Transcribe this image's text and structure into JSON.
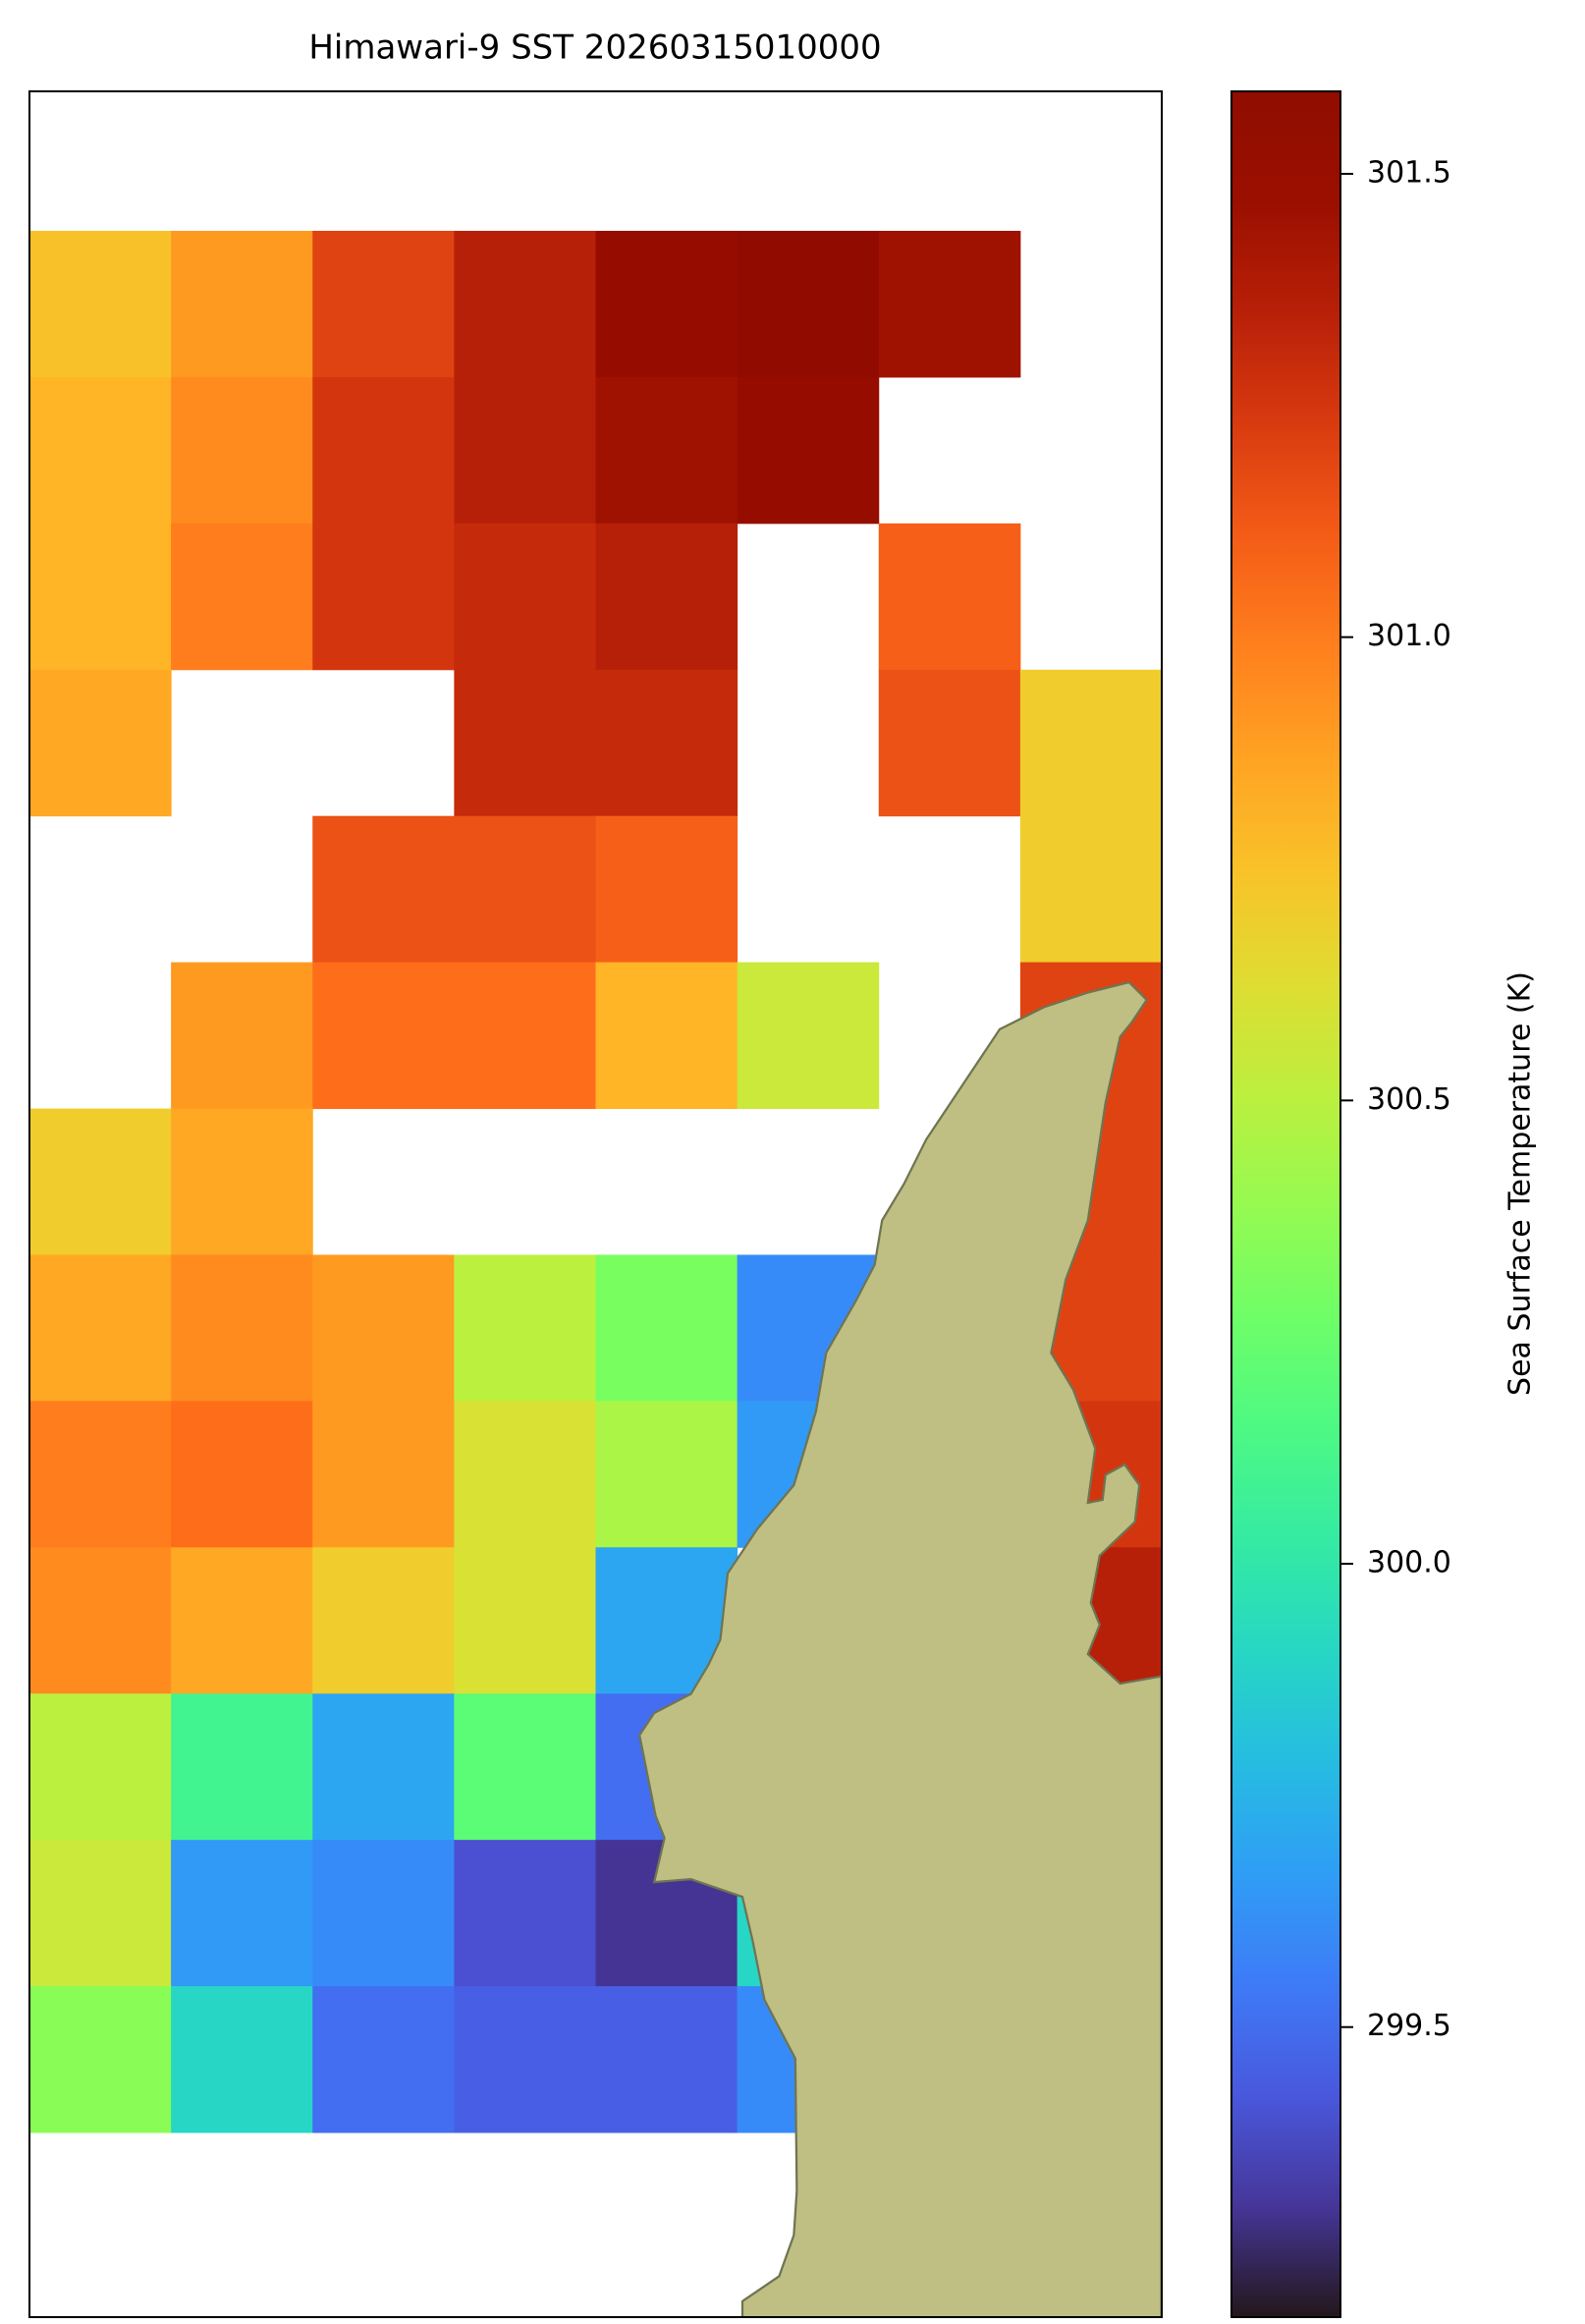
{
  "chart_data": {
    "type": "heatmap",
    "title": "Himawari-9 SST 20260315010000",
    "colorbar_label": "Sea Surface Temperature (K)",
    "colormap": "turbo",
    "clim": [
      299.187,
      301.589
    ],
    "cticks": [
      299.5,
      {
        "value": 300,
        "label": "300.0"
      },
      300.5,
      {
        "value": 301,
        "label": "301.0"
      },
      301.5
    ],
    "values": [
      [
        300.75,
        300.9,
        301.2,
        301.35,
        301.5,
        301.55,
        301.45,
        null
      ],
      [
        300.8,
        300.95,
        301.25,
        301.35,
        301.45,
        301.5,
        null,
        null
      ],
      [
        300.8,
        301.0,
        301.25,
        301.3,
        301.35,
        null,
        301.1,
        null
      ],
      [
        300.85,
        null,
        null,
        301.3,
        301.3,
        null,
        301.15,
        300.7
      ],
      [
        null,
        null,
        301.15,
        301.15,
        301.1,
        null,
        null,
        300.7
      ],
      [
        null,
        300.9,
        301.05,
        301.05,
        300.8,
        300.55,
        null,
        301.2
      ],
      [
        300.7,
        300.85,
        null,
        null,
        null,
        null,
        null,
        301.2
      ],
      [
        300.85,
        300.95,
        300.9,
        300.5,
        300.3,
        299.6,
        null,
        301.2
      ],
      [
        301.0,
        301.05,
        300.9,
        300.6,
        300.45,
        299.65,
        null,
        301.25
      ],
      [
        300.95,
        300.85,
        300.7,
        300.6,
        299.7,
        null,
        null,
        301.35
      ],
      [
        300.5,
        300.1,
        299.7,
        300.2,
        299.5,
        null,
        null,
        null
      ],
      [
        300.55,
        299.65,
        299.6,
        299.4,
        299.3,
        299.9,
        null,
        null
      ],
      [
        300.35,
        299.9,
        299.5,
        299.45,
        299.45,
        299.6,
        null,
        null
      ]
    ]
  }
}
